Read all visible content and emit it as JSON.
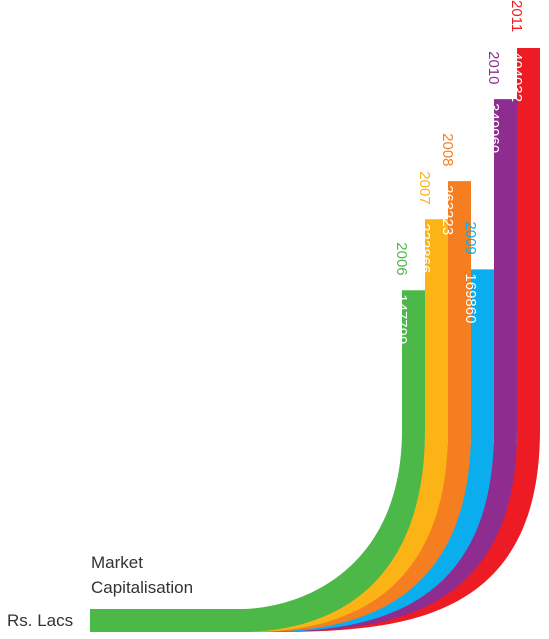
{
  "chart_data": {
    "type": "bar",
    "title_lines": [
      "Market",
      "Capitalisation"
    ],
    "unit": "Rs. Lacs",
    "categories": [
      "2006",
      "2007",
      "2008",
      "2009",
      "2010",
      "2011"
    ],
    "values": [
      147799,
      222866,
      263223,
      169860,
      349960,
      404032
    ],
    "colors": [
      "#4cb848",
      "#fbb315",
      "#f47e20",
      "#0aaeef",
      "#8f2c8f",
      "#ed1c24"
    ]
  }
}
